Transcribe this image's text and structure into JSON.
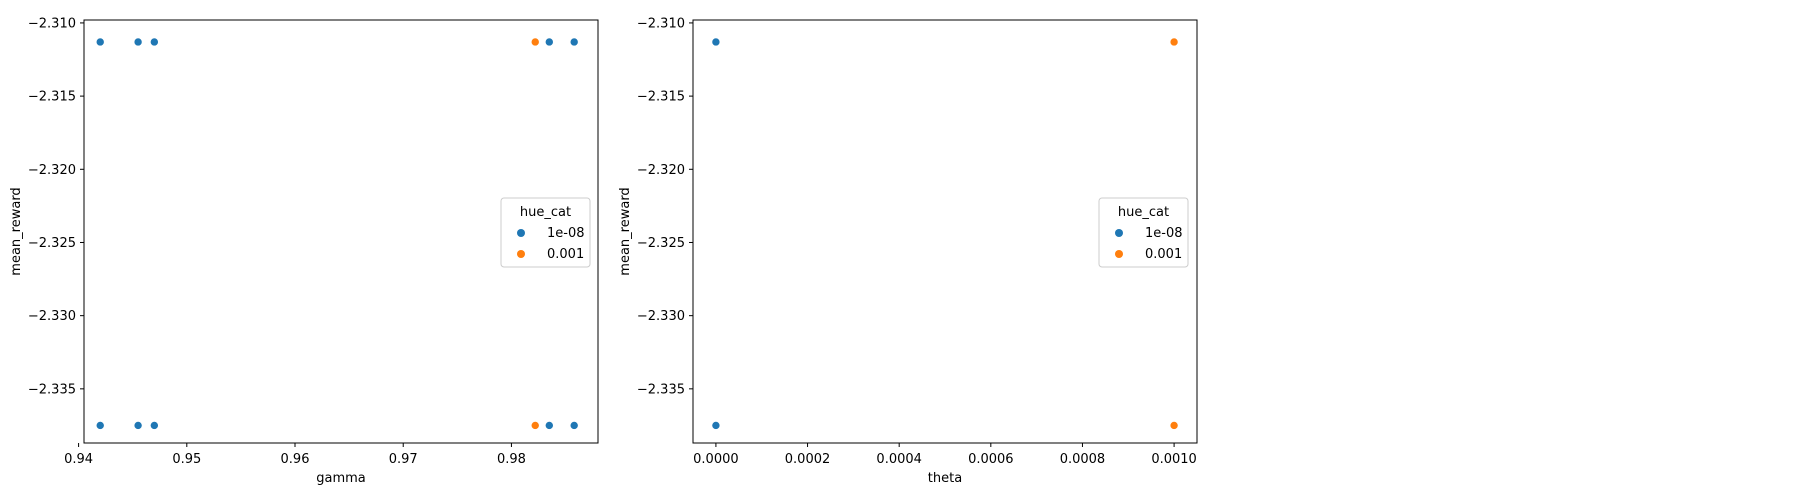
{
  "colors": {
    "series_1e08": "#1f77b4",
    "series_0001": "#ff7f0e"
  },
  "chart_data": [
    {
      "type": "scatter",
      "xlabel": "gamma",
      "ylabel": "mean_reward",
      "xlim": [
        0.9405,
        0.988
      ],
      "ylim": [
        -2.3387,
        -2.3098
      ],
      "xticks": [
        0.94,
        0.95,
        0.96,
        0.97,
        0.98
      ],
      "xtick_labels": [
        "0.94",
        "0.95",
        "0.96",
        "0.97",
        "0.98"
      ],
      "yticks": [
        -2.31,
        -2.315,
        -2.32,
        -2.325,
        -2.33,
        -2.335
      ],
      "ytick_labels": [
        "−2.310",
        "−2.315",
        "−2.320",
        "−2.325",
        "−2.330",
        "−2.335"
      ],
      "grid": false,
      "legend": {
        "title": "hue_cat",
        "position": "center-right"
      },
      "series": [
        {
          "name": "1e-08",
          "color": "#1f77b4",
          "points": [
            [
              0.942,
              -2.3113
            ],
            [
              0.9455,
              -2.3113
            ],
            [
              0.947,
              -2.3113
            ],
            [
              0.9835,
              -2.3113
            ],
            [
              0.9858,
              -2.3113
            ],
            [
              0.942,
              -2.3375
            ],
            [
              0.9455,
              -2.3375
            ],
            [
              0.947,
              -2.3375
            ],
            [
              0.9835,
              -2.3375
            ],
            [
              0.9858,
              -2.3375
            ]
          ]
        },
        {
          "name": "0.001",
          "color": "#ff7f0e",
          "points": [
            [
              0.9822,
              -2.3113
            ],
            [
              0.9822,
              -2.3375
            ]
          ]
        }
      ]
    },
    {
      "type": "scatter",
      "xlabel": "theta",
      "ylabel": "mean_reward",
      "xlim": [
        -5e-05,
        0.00105
      ],
      "ylim": [
        -2.3387,
        -2.3098
      ],
      "xticks": [
        0.0,
        0.0002,
        0.0004,
        0.0006,
        0.0008,
        0.001
      ],
      "xtick_labels": [
        "0.0000",
        "0.0002",
        "0.0004",
        "0.0006",
        "0.0008",
        "0.0010"
      ],
      "yticks": [
        -2.31,
        -2.315,
        -2.32,
        -2.325,
        -2.33,
        -2.335
      ],
      "ytick_labels": [
        "−2.310",
        "−2.315",
        "−2.320",
        "−2.325",
        "−2.330",
        "−2.335"
      ],
      "grid": false,
      "legend": {
        "title": "hue_cat",
        "position": "center-right"
      },
      "series": [
        {
          "name": "1e-08",
          "color": "#1f77b4",
          "points": [
            [
              0.0,
              -2.3113
            ],
            [
              0.0,
              -2.3375
            ]
          ]
        },
        {
          "name": "0.001",
          "color": "#ff7f0e",
          "points": [
            [
              0.001,
              -2.3113
            ],
            [
              0.001,
              -2.3375
            ]
          ]
        }
      ]
    }
  ]
}
